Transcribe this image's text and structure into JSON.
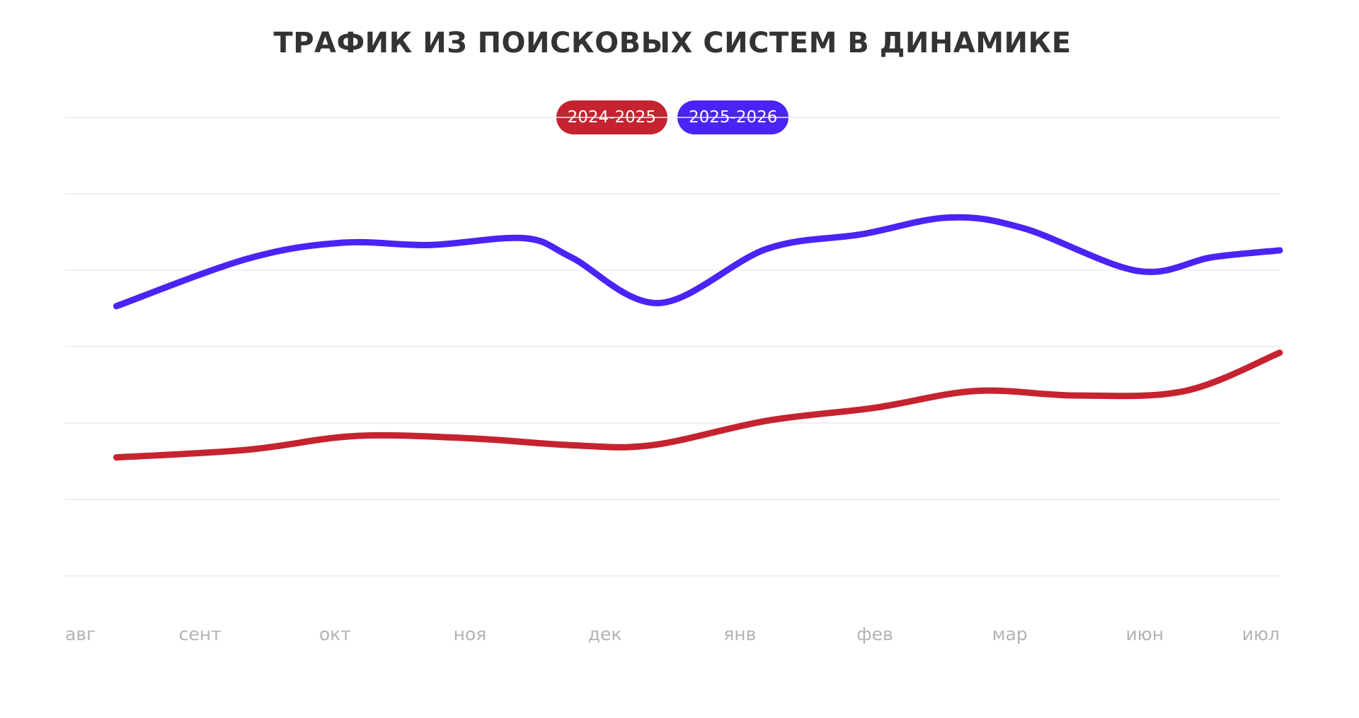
{
  "title": "ТРАФИК ИЗ ПОИСКОВЫХ СИСТЕМ В ДИНАМИКЕ",
  "legend": [
    {
      "label": "2024-2025",
      "color": "#c5232f"
    },
    {
      "label": "2025-2026",
      "color": "#4b23f5"
    }
  ],
  "chart_data": {
    "type": "line",
    "title": "ТРАФИК ИЗ ПОИСКОВЫХ СИСТЕМ В ДИНАМИКЕ",
    "xlabel": "",
    "ylabel": "",
    "x_tick_labels": [
      "авг",
      "сент",
      "окт",
      "ноя",
      "дек",
      "янв",
      "фев",
      "мар",
      "июн",
      "июл"
    ],
    "grid": true,
    "legend_position": "top-center",
    "ylim": [
      0,
      6
    ],
    "series": [
      {
        "name": "2024-2025",
        "color": "#c5232f",
        "points": [
          {
            "x": 0.38,
            "y": 1.55
          },
          {
            "x": 1.35,
            "y": 1.65
          },
          {
            "x": 2.15,
            "y": 1.83
          },
          {
            "x": 3.0,
            "y": 1.8
          },
          {
            "x": 3.75,
            "y": 1.71
          },
          {
            "x": 4.35,
            "y": 1.71
          },
          {
            "x": 5.2,
            "y": 2.03
          },
          {
            "x": 6.0,
            "y": 2.2
          },
          {
            "x": 6.75,
            "y": 2.42
          },
          {
            "x": 7.5,
            "y": 2.36
          },
          {
            "x": 8.3,
            "y": 2.42
          },
          {
            "x": 9.0,
            "y": 2.92
          }
        ]
      },
      {
        "name": "2025-2026",
        "color": "#4b23f5",
        "points": [
          {
            "x": 0.38,
            "y": 3.53
          },
          {
            "x": 1.35,
            "y": 4.15
          },
          {
            "x": 2.05,
            "y": 4.36
          },
          {
            "x": 2.7,
            "y": 4.33
          },
          {
            "x": 3.4,
            "y": 4.42
          },
          {
            "x": 3.75,
            "y": 4.17
          },
          {
            "x": 4.4,
            "y": 3.57
          },
          {
            "x": 5.2,
            "y": 4.28
          },
          {
            "x": 5.9,
            "y": 4.47
          },
          {
            "x": 6.55,
            "y": 4.69
          },
          {
            "x": 7.1,
            "y": 4.55
          },
          {
            "x": 7.95,
            "y": 3.99
          },
          {
            "x": 8.5,
            "y": 4.17
          },
          {
            "x": 9.0,
            "y": 4.26
          }
        ]
      }
    ]
  }
}
